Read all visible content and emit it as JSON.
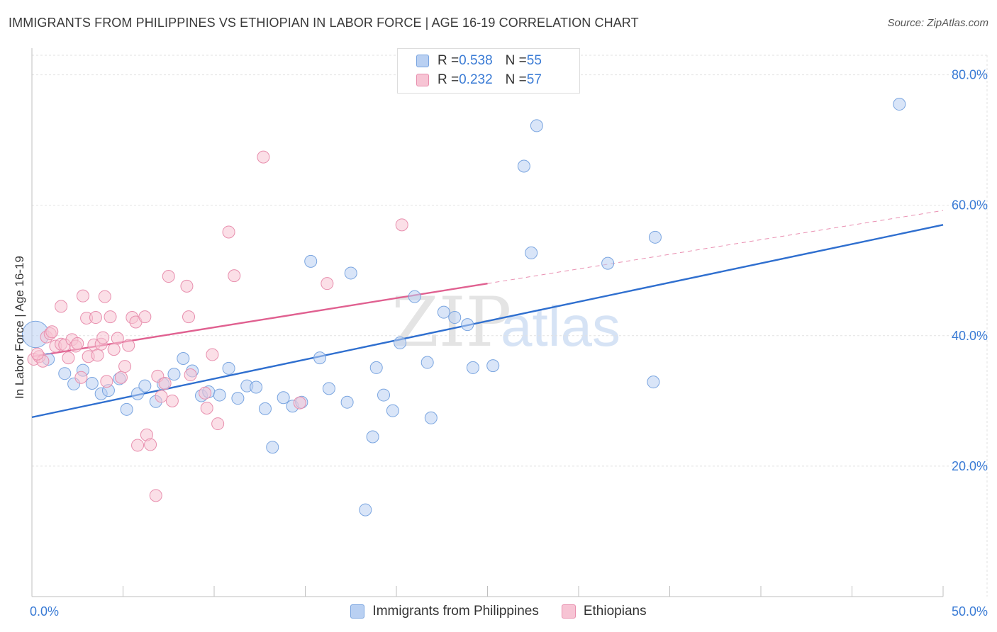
{
  "header": {
    "title": "IMMIGRANTS FROM PHILIPPINES VS ETHIOPIAN IN LABOR FORCE | AGE 16-19 CORRELATION CHART",
    "source": "Source: ZipAtlas.com"
  },
  "watermark": {
    "text_zip": "ZIP",
    "text_atlas": "atlas"
  },
  "legend": {
    "rows": [
      {
        "r_label": "R = ",
        "r_value": "0.538",
        "n_label": "N = ",
        "n_value": "55"
      },
      {
        "r_label": "R = ",
        "r_value": "0.232",
        "n_label": "N = ",
        "n_value": "57"
      }
    ]
  },
  "colors": {
    "blue_fill": "#b9d0f2",
    "blue_stroke": "#7aa5e0",
    "blue_line": "#2f6fcf",
    "pink_fill": "#f7c4d4",
    "pink_stroke": "#e88fae",
    "pink_line": "#e06090",
    "tick_label": "#3a7bd5",
    "grid": "#e2e2e2"
  },
  "chart_data": {
    "type": "scatter",
    "title": "IMMIGRANTS FROM PHILIPPINES VS ETHIOPIAN IN LABOR FORCE | AGE 16-19 CORRELATION CHART",
    "xlabel": "",
    "ylabel": "In Labor Force | Age 16-19",
    "xlim": [
      0,
      50
    ],
    "ylim": [
      0,
      83
    ],
    "x_tick_labels": [
      {
        "value": 0,
        "label": "0.0%"
      },
      {
        "value": 50,
        "label": "50.0%"
      }
    ],
    "y_tick_labels": [
      {
        "value": 20,
        "label": "20.0%"
      },
      {
        "value": 40,
        "label": "40.0%"
      },
      {
        "value": 60,
        "label": "60.0%"
      },
      {
        "value": 80,
        "label": "80.0%"
      }
    ],
    "y_gridlines": [
      20,
      40,
      60,
      80
    ],
    "x_minor_ticks": [
      5,
      10,
      15,
      20,
      25,
      30,
      35,
      40,
      45
    ],
    "grid": true,
    "legend_position": "top-center",
    "series": [
      {
        "name": "Immigrants from Philippines",
        "color": "blue",
        "trend": {
          "x0": 0,
          "y0": 27.5,
          "x1": 50,
          "y1": 57.0,
          "dashed_from": null
        },
        "points": [
          [
            0.2,
            40.2,
            2.2
          ],
          [
            0.9,
            36.4,
            1
          ],
          [
            1.8,
            34.2,
            1
          ],
          [
            2.3,
            32.6,
            1
          ],
          [
            2.8,
            34.7,
            1
          ],
          [
            3.3,
            32.7,
            1
          ],
          [
            3.8,
            31.1,
            1
          ],
          [
            4.2,
            31.6,
            1
          ],
          [
            4.8,
            33.4,
            1
          ],
          [
            5.2,
            28.7,
            1
          ],
          [
            5.8,
            31.1,
            1
          ],
          [
            6.2,
            32.3,
            1
          ],
          [
            6.8,
            29.9,
            1
          ],
          [
            7.2,
            32.6,
            1
          ],
          [
            7.8,
            34.1,
            1
          ],
          [
            8.3,
            36.5,
            1
          ],
          [
            8.8,
            34.6,
            1
          ],
          [
            9.3,
            30.8,
            1
          ],
          [
            9.7,
            31.4,
            1
          ],
          [
            10.3,
            30.9,
            1
          ],
          [
            10.8,
            35.0,
            1
          ],
          [
            11.3,
            30.4,
            1
          ],
          [
            11.8,
            32.3,
            1
          ],
          [
            12.3,
            32.1,
            1
          ],
          [
            12.8,
            28.8,
            1
          ],
          [
            13.2,
            22.9,
            1
          ],
          [
            13.8,
            30.5,
            1
          ],
          [
            14.3,
            29.2,
            1
          ],
          [
            14.8,
            29.8,
            1
          ],
          [
            15.3,
            51.4,
            1
          ],
          [
            15.8,
            36.6,
            1
          ],
          [
            16.3,
            31.9,
            1
          ],
          [
            17.3,
            29.8,
            1
          ],
          [
            17.5,
            49.6,
            1
          ],
          [
            18.3,
            13.3,
            1
          ],
          [
            18.7,
            24.5,
            1
          ],
          [
            18.9,
            35.1,
            1
          ],
          [
            19.3,
            30.9,
            1
          ],
          [
            19.8,
            28.5,
            1
          ],
          [
            20.2,
            38.9,
            1
          ],
          [
            21.0,
            46.0,
            1
          ],
          [
            21.7,
            35.9,
            1
          ],
          [
            21.9,
            27.4,
            1
          ],
          [
            22.6,
            43.6,
            1
          ],
          [
            23.2,
            42.8,
            1
          ],
          [
            23.9,
            41.7,
            1
          ],
          [
            24.2,
            35.1,
            1
          ],
          [
            25.3,
            35.4,
            1
          ],
          [
            27.4,
            52.7,
            1
          ],
          [
            31.6,
            51.1,
            1
          ],
          [
            34.1,
            32.9,
            1
          ],
          [
            34.2,
            55.1,
            1
          ],
          [
            47.6,
            75.5,
            1
          ],
          [
            27.0,
            66.0,
            1
          ],
          [
            27.7,
            72.2,
            1
          ]
        ]
      },
      {
        "name": "Ethiopians",
        "color": "pink",
        "trend": {
          "x0": 0,
          "y0": 36.8,
          "x1": 50,
          "y1": 59.2,
          "dashed_from": 25
        },
        "points": [
          [
            0.1,
            36.4,
            1
          ],
          [
            0.4,
            36.8,
            1
          ],
          [
            0.6,
            36.1,
            1
          ],
          [
            0.8,
            39.8,
            1
          ],
          [
            1.0,
            40.3,
            1
          ],
          [
            1.3,
            38.4,
            1
          ],
          [
            1.6,
            38.7,
            1
          ],
          [
            1.6,
            44.5,
            1
          ],
          [
            1.8,
            38.6,
            1
          ],
          [
            2.0,
            36.6,
            1
          ],
          [
            2.2,
            39.4,
            1
          ],
          [
            2.4,
            38.4,
            1
          ],
          [
            2.5,
            38.8,
            1
          ],
          [
            2.7,
            33.6,
            1
          ],
          [
            2.8,
            46.1,
            1
          ],
          [
            3.0,
            42.7,
            1
          ],
          [
            3.1,
            36.8,
            1
          ],
          [
            3.4,
            38.6,
            1
          ],
          [
            3.5,
            42.8,
            1
          ],
          [
            3.6,
            37.0,
            1
          ],
          [
            3.8,
            38.7,
            1
          ],
          [
            3.9,
            39.7,
            1
          ],
          [
            4.0,
            46.0,
            1
          ],
          [
            4.1,
            33.0,
            1
          ],
          [
            4.3,
            42.9,
            1
          ],
          [
            4.5,
            37.9,
            1
          ],
          [
            4.7,
            39.6,
            1
          ],
          [
            4.9,
            33.6,
            1
          ],
          [
            5.1,
            35.3,
            1
          ],
          [
            5.3,
            38.5,
            1
          ],
          [
            5.5,
            42.8,
            1
          ],
          [
            5.7,
            42.1,
            1
          ],
          [
            5.8,
            23.2,
            1
          ],
          [
            6.2,
            42.9,
            1
          ],
          [
            6.3,
            24.8,
            1
          ],
          [
            6.5,
            23.3,
            1
          ],
          [
            6.8,
            15.5,
            1
          ],
          [
            6.9,
            33.8,
            1
          ],
          [
            7.1,
            30.7,
            1
          ],
          [
            7.3,
            32.7,
            1
          ],
          [
            7.5,
            49.1,
            1
          ],
          [
            7.7,
            30.0,
            1
          ],
          [
            8.5,
            47.6,
            1
          ],
          [
            8.6,
            42.9,
            1
          ],
          [
            8.7,
            34.0,
            1
          ],
          [
            9.5,
            31.2,
            1
          ],
          [
            9.6,
            28.9,
            1
          ],
          [
            9.9,
            37.1,
            1
          ],
          [
            10.2,
            26.5,
            1
          ],
          [
            10.8,
            55.9,
            1
          ],
          [
            11.1,
            49.2,
            1
          ],
          [
            12.7,
            67.4,
            1
          ],
          [
            14.7,
            29.7,
            1
          ],
          [
            16.2,
            48.0,
            1
          ],
          [
            20.3,
            57.0,
            1
          ],
          [
            0.3,
            37.2,
            1
          ],
          [
            1.1,
            40.6,
            1
          ]
        ]
      }
    ]
  },
  "bottom_legend": {
    "series_1_label": "Immigrants from Philippines",
    "series_2_label": "Ethiopians"
  }
}
